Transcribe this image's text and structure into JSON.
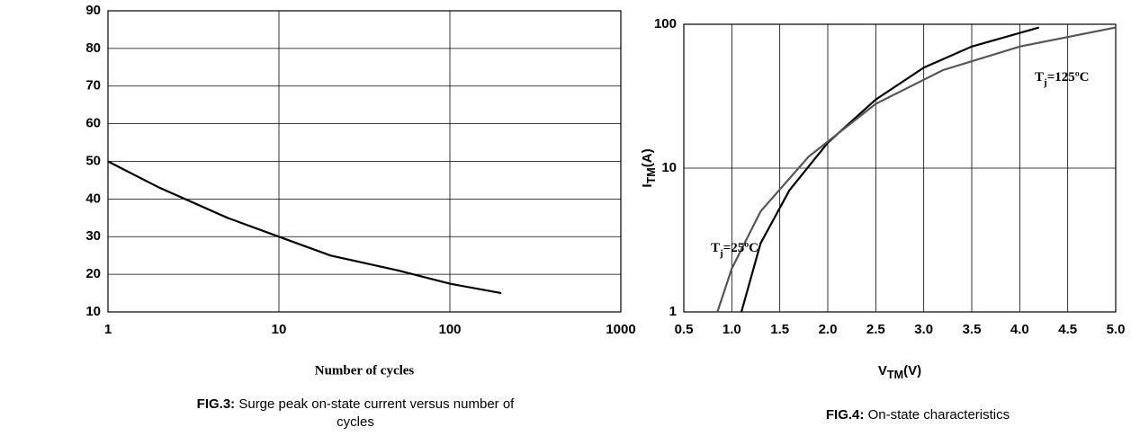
{
  "chart_data": [
    {
      "type": "line",
      "x_scale": "log",
      "y_scale": "linear",
      "xlim": [
        1,
        1000
      ],
      "xticks": [
        1,
        10,
        100,
        1000
      ],
      "ylim": [
        10,
        90
      ],
      "yticks": [
        10,
        20,
        30,
        40,
        50,
        60,
        70,
        80,
        90
      ],
      "grid": true,
      "xlabel": "Number of cycles",
      "caption": {
        "label": "FIG.3:",
        "text": "Surge peak on-state current versus number of cycles"
      },
      "series": [
        {
          "color": "#000000",
          "x": [
            1,
            2,
            5,
            10,
            20,
            50,
            100,
            200
          ],
          "values": [
            50,
            43,
            35,
            30,
            25,
            21,
            17.5,
            15
          ]
        }
      ]
    },
    {
      "type": "line",
      "x_scale": "linear",
      "y_scale": "log",
      "xlim": [
        0.5,
        5.0
      ],
      "xticks": [
        {
          "value": 0.5,
          "label": "0.5"
        },
        {
          "value": 1.0,
          "label": "1.0"
        },
        {
          "value": 1.5,
          "label": "1.5"
        },
        {
          "value": 2.0,
          "label": "2.0"
        },
        {
          "value": 2.5,
          "label": "2.5"
        },
        {
          "value": 3.0,
          "label": "3.0"
        },
        {
          "value": 3.5,
          "label": "3.5"
        },
        {
          "value": 4.0,
          "label": "4.0"
        },
        {
          "value": 4.5,
          "label": "4.5"
        },
        {
          "value": 5.0,
          "label": "5.0"
        }
      ],
      "ylim": [
        1,
        100
      ],
      "yticks": [
        1,
        10,
        100
      ],
      "grid": true,
      "xlabel": {
        "text": "V",
        "sub": "TM",
        "unit": "(V)"
      },
      "ylabel": {
        "text": "I",
        "sub": "TM",
        "unit": "(A)"
      },
      "caption": {
        "label": "FIG.4:",
        "text": "On-state characteristics"
      },
      "series": [
        {
          "color": "#000000",
          "x": [
            1.1,
            1.3,
            1.6,
            2.0,
            2.5,
            3.0,
            3.5,
            4.2
          ],
          "values": [
            1,
            3,
            7,
            15,
            30,
            50,
            70,
            95
          ]
        },
        {
          "color": "#555555",
          "x": [
            0.85,
            1.0,
            1.3,
            1.8,
            2.5,
            3.2,
            4.0,
            5.0
          ],
          "values": [
            1,
            2,
            5,
            12,
            28,
            48,
            70,
            95
          ]
        }
      ],
      "annotations": [
        {
          "text": "T",
          "sub": "j",
          "rest": "=25ºC"
        },
        {
          "text": "T",
          "sub": "j",
          "rest": "=125ºC"
        }
      ]
    }
  ]
}
